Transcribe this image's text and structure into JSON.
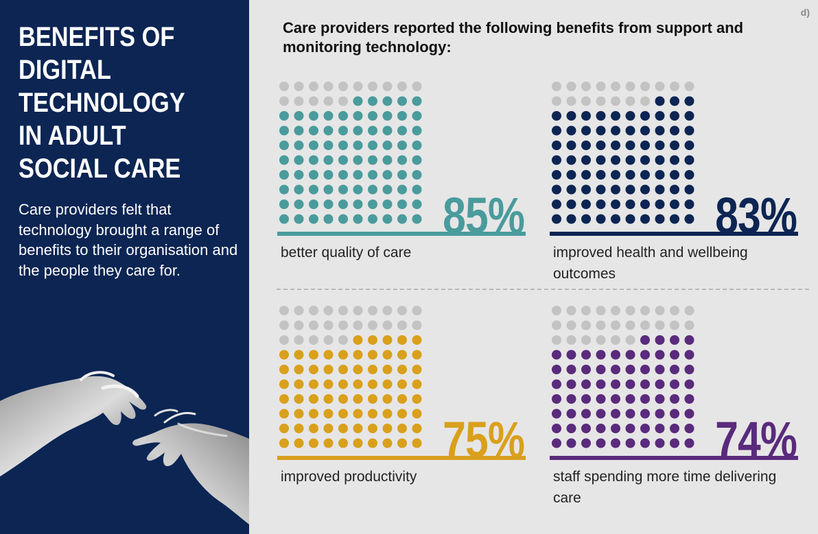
{
  "sidebar": {
    "title_lines": [
      "BENEFITS OF",
      "DIGITAL",
      "TECHNOLOGY",
      "IN ADULT",
      "SOCIAL CARE"
    ],
    "intro": "Care providers felt that technology brought a range of benefits to their organisation and the people they care for.",
    "image_icon": "hands-icon"
  },
  "corner_tag": "d)",
  "heading": "Care providers reported the following benefits from support and monitoring technology:",
  "colors": {
    "sidebar_bg": "#0c2553",
    "page_bg": "#e6e6e6",
    "inactive_dot": "#c3c3c3",
    "teal": "#4a9b9c",
    "navy": "#0c2553",
    "gold": "#d9a01c",
    "purple": "#5a2a7c"
  },
  "chart_data": [
    {
      "type": "waffle",
      "total_dots": 100,
      "value": 85,
      "value_label": "85%",
      "label": "better quality of care",
      "color": "#4a9b9c"
    },
    {
      "type": "waffle",
      "total_dots": 100,
      "value": 83,
      "value_label": "83%",
      "label": "improved health and wellbeing outcomes",
      "color": "#0c2553"
    },
    {
      "type": "waffle",
      "total_dots": 100,
      "value": 75,
      "value_label": "75%",
      "label": "improved productivity",
      "color": "#d9a01c"
    },
    {
      "type": "waffle",
      "total_dots": 100,
      "value": 74,
      "value_label": "74%",
      "label": "staff spending more time delivering care",
      "color": "#5a2a7c"
    }
  ]
}
